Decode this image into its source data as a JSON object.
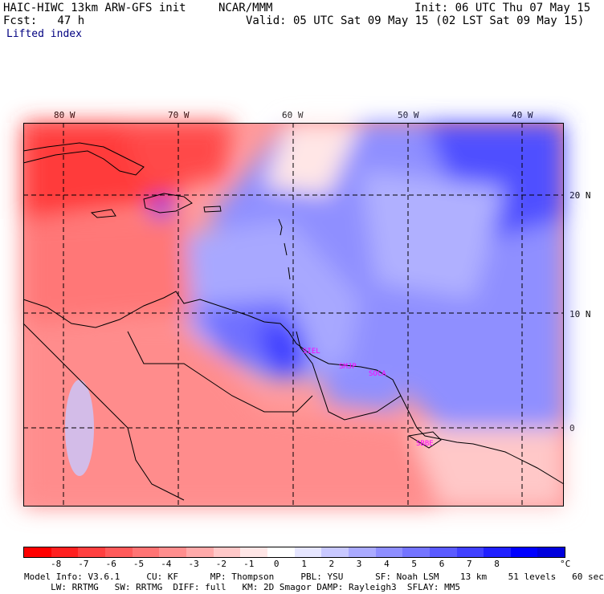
{
  "header": {
    "model": "HAIC-HIWC 13km ARW-GFS init",
    "center": "NCAR/MMM",
    "init": "Init: 06 UTC Thu 07 May 15",
    "fcst": "Fcst:   47 h",
    "valid": "Valid: 05 UTC Sat 09 May 15 (02 LST Sat 09 May 15)",
    "field": "Lifted index"
  },
  "axes": {
    "lon_labels": [
      "80 W",
      "70 W",
      "60 W",
      "50 W",
      "40 W"
    ],
    "lat_labels": [
      "20 N",
      "10 N",
      "0"
    ]
  },
  "stations": [
    "SIEL",
    "SMJP",
    "SOCA",
    "SBBE"
  ],
  "colorbar": {
    "ticks": [
      "-8",
      "-7",
      "-6",
      "-5",
      "-4",
      "-3",
      "-2",
      "-1",
      "0",
      "1",
      "2",
      "3",
      "4",
      "5",
      "6",
      "7",
      "8"
    ],
    "unit": "°C",
    "colors": [
      "#ff0000",
      "#ff2020",
      "#ff4040",
      "#ff5a5a",
      "#ff7474",
      "#ff8e8e",
      "#ffaaaa",
      "#ffc8c8",
      "#ffe6e6",
      "#ffffff",
      "#e6e6ff",
      "#c8c8ff",
      "#aaaaff",
      "#8e8eff",
      "#7474ff",
      "#5a5aff",
      "#4040ff",
      "#2020ff",
      "#0000ff",
      "#0000dd"
    ]
  },
  "footer": {
    "line1": "Model Info: V3.6.1     CU: KF      MP: Thompson     PBL: YSU      SF: Noah LSM    13 km    51 levels   60 sec",
    "line2": "     LW: RRTMG   SW: RRTMG  DIFF: full   KM: 2D Smagor DAMP: Rayleigh3  SFLAY: MM5"
  }
}
